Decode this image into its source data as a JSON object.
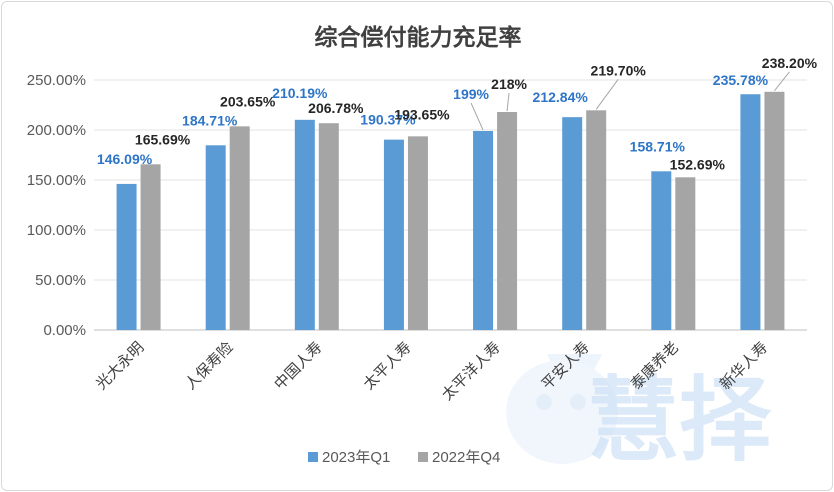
{
  "chart_data": {
    "type": "bar",
    "title": "综合偿付能力充足率",
    "categories": [
      "光大永明",
      "人保寿险",
      "中国人寿",
      "太平人寿",
      "太平洋人寿",
      "平安人寿",
      "泰康养老",
      "新华人寿"
    ],
    "series": [
      {
        "name": "2023年Q1",
        "color": "#5b9bd5",
        "values": [
          146.09,
          184.71,
          210.19,
          190.37,
          199,
          212.84,
          158.71,
          235.78
        ],
        "labels": [
          "146.09%",
          "184.71%",
          "210.19%",
          "190.37%",
          "199%",
          "212.84%",
          "158.71%",
          "235.78%"
        ]
      },
      {
        "name": "2022年Q4",
        "color": "#a5a5a5",
        "values": [
          165.69,
          203.65,
          206.78,
          193.65,
          218,
          219.7,
          152.69,
          238.2
        ],
        "labels": [
          "165.69%",
          "203.65%",
          "206.78%",
          "193.65%",
          "218%",
          "219.70%",
          "152.69%",
          "238.20%"
        ]
      }
    ],
    "y_ticks": [
      "0.00%",
      "50.00%",
      "100.00%",
      "150.00%",
      "200.00%",
      "250.00%"
    ],
    "ylim": [
      0,
      250
    ],
    "grid": true,
    "legend_position": "bottom"
  },
  "watermark": {
    "text": "慧择",
    "icon": "mascot-icon"
  }
}
